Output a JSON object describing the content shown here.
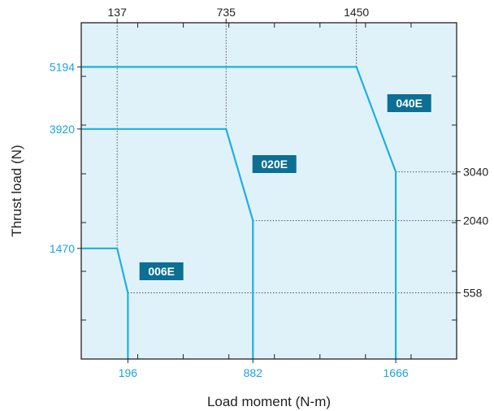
{
  "chart_data": {
    "type": "line",
    "xlabel": "Load moment (N-m)",
    "ylabel": "Thrust load (N)",
    "xlim": [
      -60,
      2000
    ],
    "ylim": [
      -800,
      6100
    ],
    "grid": false,
    "colors": {
      "plot_background": "#e0f2f9",
      "line": "#1eaee6",
      "badge": "#0d6f94",
      "highlight_tick_text": "#1ea3dc",
      "plain_tick_text": "#222222",
      "guide": "#555555"
    },
    "series": [
      {
        "name": "006E",
        "x": [
          -60,
          137,
          196,
          196
        ],
        "y": [
          1470,
          1470,
          558,
          -800
        ]
      },
      {
        "name": "020E",
        "x": [
          -60,
          735,
          882,
          882
        ],
        "y": [
          3920,
          3920,
          2040,
          -800
        ]
      },
      {
        "name": "040E",
        "x": [
          -60,
          1450,
          1666,
          1666
        ],
        "y": [
          5194,
          5194,
          3040,
          -800
        ]
      }
    ],
    "x_ticks_bottom": [
      "196",
      "882",
      "1666"
    ],
    "x_tick_values_bottom": [
      196,
      882,
      1666
    ],
    "x_ticks_top": [
      "137",
      "735",
      "1450"
    ],
    "x_tick_values_top": [
      137,
      735,
      1450
    ],
    "y_ticks_left": [
      "1470",
      "3920",
      "5194"
    ],
    "y_tick_values_left": [
      1470,
      3920,
      5194
    ],
    "y_ticks_right": [
      "558",
      "2040",
      "3040"
    ],
    "y_tick_values_right": [
      558,
      2040,
      3040
    ],
    "minor_x_ticks": [
      250,
      500,
      750,
      1000,
      1250,
      1500,
      1750
    ],
    "minor_y_ticks": [
      0,
      1000,
      2000,
      3000,
      4000,
      5000
    ],
    "badges": [
      {
        "text": "006E",
        "x": 380,
        "y": 1000
      },
      {
        "text": "020E",
        "x": 1000,
        "y": 3200
      },
      {
        "text": "040E",
        "x": 1740,
        "y": 4450
      }
    ]
  }
}
